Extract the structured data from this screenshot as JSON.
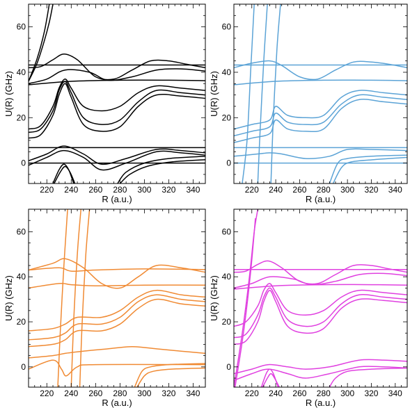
{
  "chart_data": [
    {
      "type": "line",
      "color": "#000000",
      "xlabel": "R (a.u.)",
      "ylabel": "U(R) (GHz)",
      "xlim": [
        205,
        350
      ],
      "ylim": [
        -9,
        70
      ],
      "xticks": [
        220,
        240,
        260,
        280,
        300,
        320,
        340
      ],
      "yticks": [
        0,
        20,
        40,
        60
      ],
      "series": [
        {
          "x": [
            205,
            212,
            218,
            222,
            225
          ],
          "y": [
            36,
            44,
            54,
            62,
            70
          ]
        },
        {
          "x": [
            205,
            212,
            218,
            222
          ],
          "y": [
            36,
            46,
            58,
            70
          ]
        },
        {
          "x": [
            205,
            350
          ],
          "y": [
            43.2,
            43.2
          ]
        },
        {
          "x": [
            205,
            215,
            225,
            234,
            245,
            260,
            275,
            290,
            305,
            320,
            335,
            350
          ],
          "y": [
            42,
            42.5,
            45.5,
            48,
            45.5,
            38,
            37,
            41,
            45,
            45,
            43.5,
            42
          ]
        },
        {
          "x": [
            205,
            220,
            235,
            255,
            270,
            290,
            310,
            330,
            350
          ],
          "y": [
            35,
            37,
            41,
            40,
            36.5,
            38,
            41,
            41.5,
            40.5
          ]
        },
        {
          "x": [
            205,
            240,
            280,
            320,
            350
          ],
          "y": [
            34.5,
            36,
            36.5,
            36.5,
            36.3
          ]
        },
        {
          "x": [
            205,
            215,
            225,
            230,
            235,
            240,
            250,
            265,
            280,
            295,
            310,
            330,
            350
          ],
          "y": [
            15,
            16.5,
            25,
            33,
            37,
            33,
            25,
            23,
            25,
            31,
            34,
            33,
            32
          ]
        },
        {
          "x": [
            205,
            215,
            225,
            230,
            235,
            240,
            250,
            265,
            280,
            295,
            310,
            330,
            350
          ],
          "y": [
            13.5,
            15,
            23,
            32,
            36,
            31,
            20,
            17,
            19,
            27,
            32,
            31,
            30
          ]
        },
        {
          "x": [
            205,
            215,
            225,
            230,
            235,
            240,
            250,
            265,
            280,
            295,
            310,
            330,
            350
          ],
          "y": [
            11,
            12.5,
            21,
            30,
            35,
            29,
            17,
            14,
            16,
            25,
            30,
            29.5,
            28.5
          ]
        },
        {
          "x": [
            205,
            350
          ],
          "y": [
            6.8,
            6.8
          ]
        },
        {
          "x": [
            205,
            220,
            234,
            250,
            265,
            285,
            310,
            330,
            350
          ],
          "y": [
            1,
            4,
            7.5,
            4,
            -0.5,
            2,
            6,
            5.5,
            4.5
          ]
        },
        {
          "x": [
            205,
            220,
            234,
            250,
            265,
            285,
            310,
            330,
            350
          ],
          "y": [
            -1,
            2.5,
            5.5,
            2.5,
            -3,
            0,
            5,
            4.5,
            3.5
          ]
        },
        {
          "x": [
            205,
            350
          ],
          "y": [
            0,
            0
          ]
        },
        {
          "x": [
            225,
            230,
            234,
            238,
            242
          ],
          "y": [
            -9,
            -3,
            -0.5,
            -3,
            -9
          ]
        },
        {
          "x": [
            226,
            231,
            235,
            239,
            243
          ],
          "y": [
            -9,
            -4,
            -1.5,
            -4,
            -9
          ]
        },
        {
          "x": [
            278,
            285,
            300,
            320,
            350
          ],
          "y": [
            -9,
            -4,
            0,
            2,
            3
          ]
        },
        {
          "x": [
            280,
            288,
            302,
            322,
            350
          ],
          "y": [
            -9,
            -5,
            -1.5,
            0.5,
            1.5
          ]
        }
      ]
    },
    {
      "type": "scatter",
      "color": "#5ba3d6",
      "xlabel": "R (a.u.)",
      "ylabel": "U(R) (GHz)",
      "xlim": [
        205,
        350
      ],
      "ylim": [
        -9,
        70
      ],
      "xticks": [
        220,
        240,
        260,
        280,
        300,
        320,
        340
      ],
      "yticks": [
        0,
        20,
        40,
        60
      ],
      "series": [
        {
          "x": [
            212,
            216,
            219,
            222
          ],
          "y": [
            -9,
            10,
            40,
            70
          ]
        },
        {
          "x": [
            225,
            227,
            230,
            233
          ],
          "y": [
            -9,
            15,
            45,
            70
          ]
        },
        {
          "x": [
            236,
            238,
            241,
            244
          ],
          "y": [
            -9,
            20,
            50,
            70
          ]
        },
        {
          "x": [
            205,
            350
          ],
          "y": [
            43.2,
            43.2
          ]
        },
        {
          "x": [
            205,
            220,
            235,
            245,
            260,
            275,
            290,
            305,
            320,
            335,
            350
          ],
          "y": [
            42,
            44,
            45,
            43,
            38,
            37,
            41,
            44.5,
            44.5,
            43.5,
            42
          ]
        },
        {
          "x": [
            205,
            240,
            280,
            320,
            350
          ],
          "y": [
            34.5,
            36,
            36.5,
            36.5,
            36.3
          ]
        },
        {
          "x": [
            205,
            220,
            235,
            240,
            250,
            265,
            280,
            295,
            310,
            330,
            350
          ],
          "y": [
            15,
            17,
            19,
            25,
            21,
            20,
            21,
            29,
            32,
            31,
            30
          ]
        },
        {
          "x": [
            205,
            220,
            235,
            240,
            250,
            265,
            280,
            295,
            310,
            330,
            350
          ],
          "y": [
            12,
            14,
            16,
            22,
            18,
            17,
            18,
            26,
            30,
            29,
            28
          ]
        },
        {
          "x": [
            205,
            220,
            235,
            240,
            250,
            265,
            280,
            295,
            310,
            330,
            350
          ],
          "y": [
            9,
            11,
            13,
            19,
            15,
            14,
            15,
            24,
            28,
            27,
            26
          ]
        },
        {
          "x": [
            205,
            350
          ],
          "y": [
            6.8,
            6.8
          ]
        },
        {
          "x": [
            205,
            225,
            235,
            245,
            265,
            285,
            300,
            320,
            350
          ],
          "y": [
            3,
            4,
            4.5,
            4,
            2,
            3,
            6,
            6,
            5.5
          ]
        },
        {
          "x": [
            205,
            350
          ],
          "y": [
            0,
            0
          ]
        },
        {
          "x": [
            285,
            292,
            300,
            320,
            350
          ],
          "y": [
            -9,
            0,
            2,
            3,
            3.5
          ]
        },
        {
          "x": [
            288,
            295,
            303,
            322,
            350
          ],
          "y": [
            -9,
            -2,
            0.5,
            1.5,
            2.5
          ]
        }
      ]
    },
    {
      "type": "scatter",
      "color": "#f08a33",
      "xlabel": "R (a.u.)",
      "ylabel": "U(R) (GHz)",
      "xlim": [
        205,
        350
      ],
      "ylim": [
        -9,
        70
      ],
      "xticks": [
        220,
        240,
        260,
        280,
        300,
        320,
        340
      ],
      "yticks": [
        0,
        20,
        40,
        60
      ],
      "series": [
        {
          "x": [
            229,
            231,
            234,
            237
          ],
          "y": [
            -9,
            15,
            45,
            70
          ]
        },
        {
          "x": [
            240,
            242,
            245,
            248
          ],
          "y": [
            -9,
            20,
            50,
            70
          ]
        },
        {
          "x": [
            247,
            249,
            252,
            255
          ],
          "y": [
            -9,
            20,
            50,
            70
          ]
        },
        {
          "x": [
            205,
            230,
            240,
            260,
            300,
            350
          ],
          "y": [
            43,
            44,
            42.5,
            43,
            43.5,
            43.2
          ]
        },
        {
          "x": [
            205,
            225,
            235,
            250,
            265,
            280,
            295,
            310,
            330,
            350
          ],
          "y": [
            43,
            46,
            48,
            44,
            37,
            35,
            40,
            45,
            44,
            42
          ]
        },
        {
          "x": [
            205,
            230,
            240,
            260,
            300,
            350
          ],
          "y": [
            35,
            37,
            36.5,
            36,
            36.3,
            36.3
          ]
        },
        {
          "x": [
            205,
            225,
            235,
            245,
            265,
            280,
            295,
            310,
            330,
            350
          ],
          "y": [
            16,
            17,
            19,
            22,
            22,
            25,
            31,
            34,
            32,
            31
          ]
        },
        {
          "x": [
            205,
            225,
            235,
            245,
            265,
            280,
            295,
            310,
            330,
            350
          ],
          "y": [
            12,
            13,
            15,
            19,
            19,
            22,
            29,
            32,
            30,
            29
          ]
        },
        {
          "x": [
            205,
            225,
            235,
            245,
            265,
            280,
            295,
            310,
            330,
            350
          ],
          "y": [
            9,
            10,
            12,
            16,
            16,
            19,
            26,
            30,
            28,
            27
          ]
        },
        {
          "x": [
            205,
            225,
            235,
            250,
            270,
            290,
            310,
            330,
            350
          ],
          "y": [
            4,
            5,
            6,
            7,
            8,
            9,
            8,
            7,
            6
          ]
        },
        {
          "x": [
            205,
            225,
            232,
            236,
            245,
            260,
            350
          ],
          "y": [
            -1,
            3,
            -1,
            -4,
            0,
            1,
            1
          ]
        },
        {
          "x": [
            292,
            298,
            305,
            320,
            350
          ],
          "y": [
            -9,
            -2,
            0,
            1,
            1.5
          ]
        },
        {
          "x": [
            294,
            300,
            307,
            322,
            350
          ],
          "y": [
            -9,
            -4,
            -2,
            -1,
            -0.5
          ]
        }
      ]
    },
    {
      "type": "scatter",
      "color": "#e040e0",
      "xlabel": "R (a.u.)",
      "ylabel": "U(R) (GHz)",
      "xlim": [
        205,
        350
      ],
      "ylim": [
        -9,
        70
      ],
      "xticks": [
        220,
        240,
        260,
        280,
        300,
        320,
        340
      ],
      "yticks": [
        0,
        20,
        40,
        60
      ],
      "series": [
        {
          "x": [
            205,
            212,
            218,
            222,
            225
          ],
          "y": [
            -9,
            15,
            40,
            60,
            70
          ]
        },
        {
          "x": [
            206,
            213,
            219,
            223
          ],
          "y": [
            -9,
            15,
            42,
            66
          ]
        },
        {
          "x": [
            205,
            350
          ],
          "y": [
            43.2,
            43.2
          ]
        },
        {
          "x": [
            205,
            215,
            225,
            234,
            245,
            260,
            275,
            290,
            305,
            320,
            335,
            350
          ],
          "y": [
            42,
            42.5,
            45.5,
            47,
            44,
            38,
            37,
            41,
            45,
            45,
            43.5,
            42
          ]
        },
        {
          "x": [
            205,
            220,
            235,
            255,
            270,
            290,
            310,
            330,
            350
          ],
          "y": [
            35,
            37,
            40,
            39,
            36.5,
            38,
            41,
            41.5,
            40.5
          ]
        },
        {
          "x": [
            205,
            240,
            280,
            320,
            350
          ],
          "y": [
            34.5,
            36,
            36.5,
            36.5,
            36.3
          ]
        },
        {
          "x": [
            205,
            215,
            225,
            230,
            235,
            240,
            250,
            265,
            280,
            295,
            310,
            330,
            350
          ],
          "y": [
            18,
            20,
            27,
            34,
            37,
            33,
            25,
            23,
            25,
            31,
            34,
            33,
            32
          ]
        },
        {
          "x": [
            205,
            215,
            225,
            230,
            235,
            240,
            250,
            265,
            280,
            295,
            310,
            330,
            350
          ],
          "y": [
            13,
            14.5,
            23,
            31,
            35,
            31,
            21,
            18,
            20,
            28,
            32,
            31,
            30
          ]
        },
        {
          "x": [
            205,
            215,
            225,
            230,
            235,
            240,
            250,
            265,
            280,
            295,
            310,
            330,
            350
          ],
          "y": [
            10,
            11.5,
            20,
            29,
            34,
            29,
            18,
            15,
            17,
            26,
            30,
            29.5,
            28.5
          ]
        },
        {
          "x": [
            205,
            220,
            234,
            250,
            265,
            285,
            310,
            330,
            350
          ],
          "y": [
            -3,
            -1,
            1,
            0,
            -1,
            0,
            3,
            3,
            2.5
          ]
        },
        {
          "x": [
            205,
            220,
            234,
            250,
            265,
            285,
            310,
            330,
            350
          ],
          "y": [
            -6,
            -3,
            -1,
            -3,
            -5,
            -3,
            0,
            0,
            -0.5
          ]
        },
        {
          "x": [
            228,
            232,
            235,
            238,
            242
          ],
          "y": [
            -9,
            -3,
            -1,
            -3,
            -9
          ]
        },
        {
          "x": [
            229,
            233,
            236,
            239,
            243
          ],
          "y": [
            -9,
            -5,
            -3,
            -5,
            -9
          ]
        },
        {
          "x": [
            285,
            290,
            300,
            320,
            350
          ],
          "y": [
            -9,
            -5,
            -2,
            -1,
            -0.5
          ]
        }
      ]
    }
  ]
}
